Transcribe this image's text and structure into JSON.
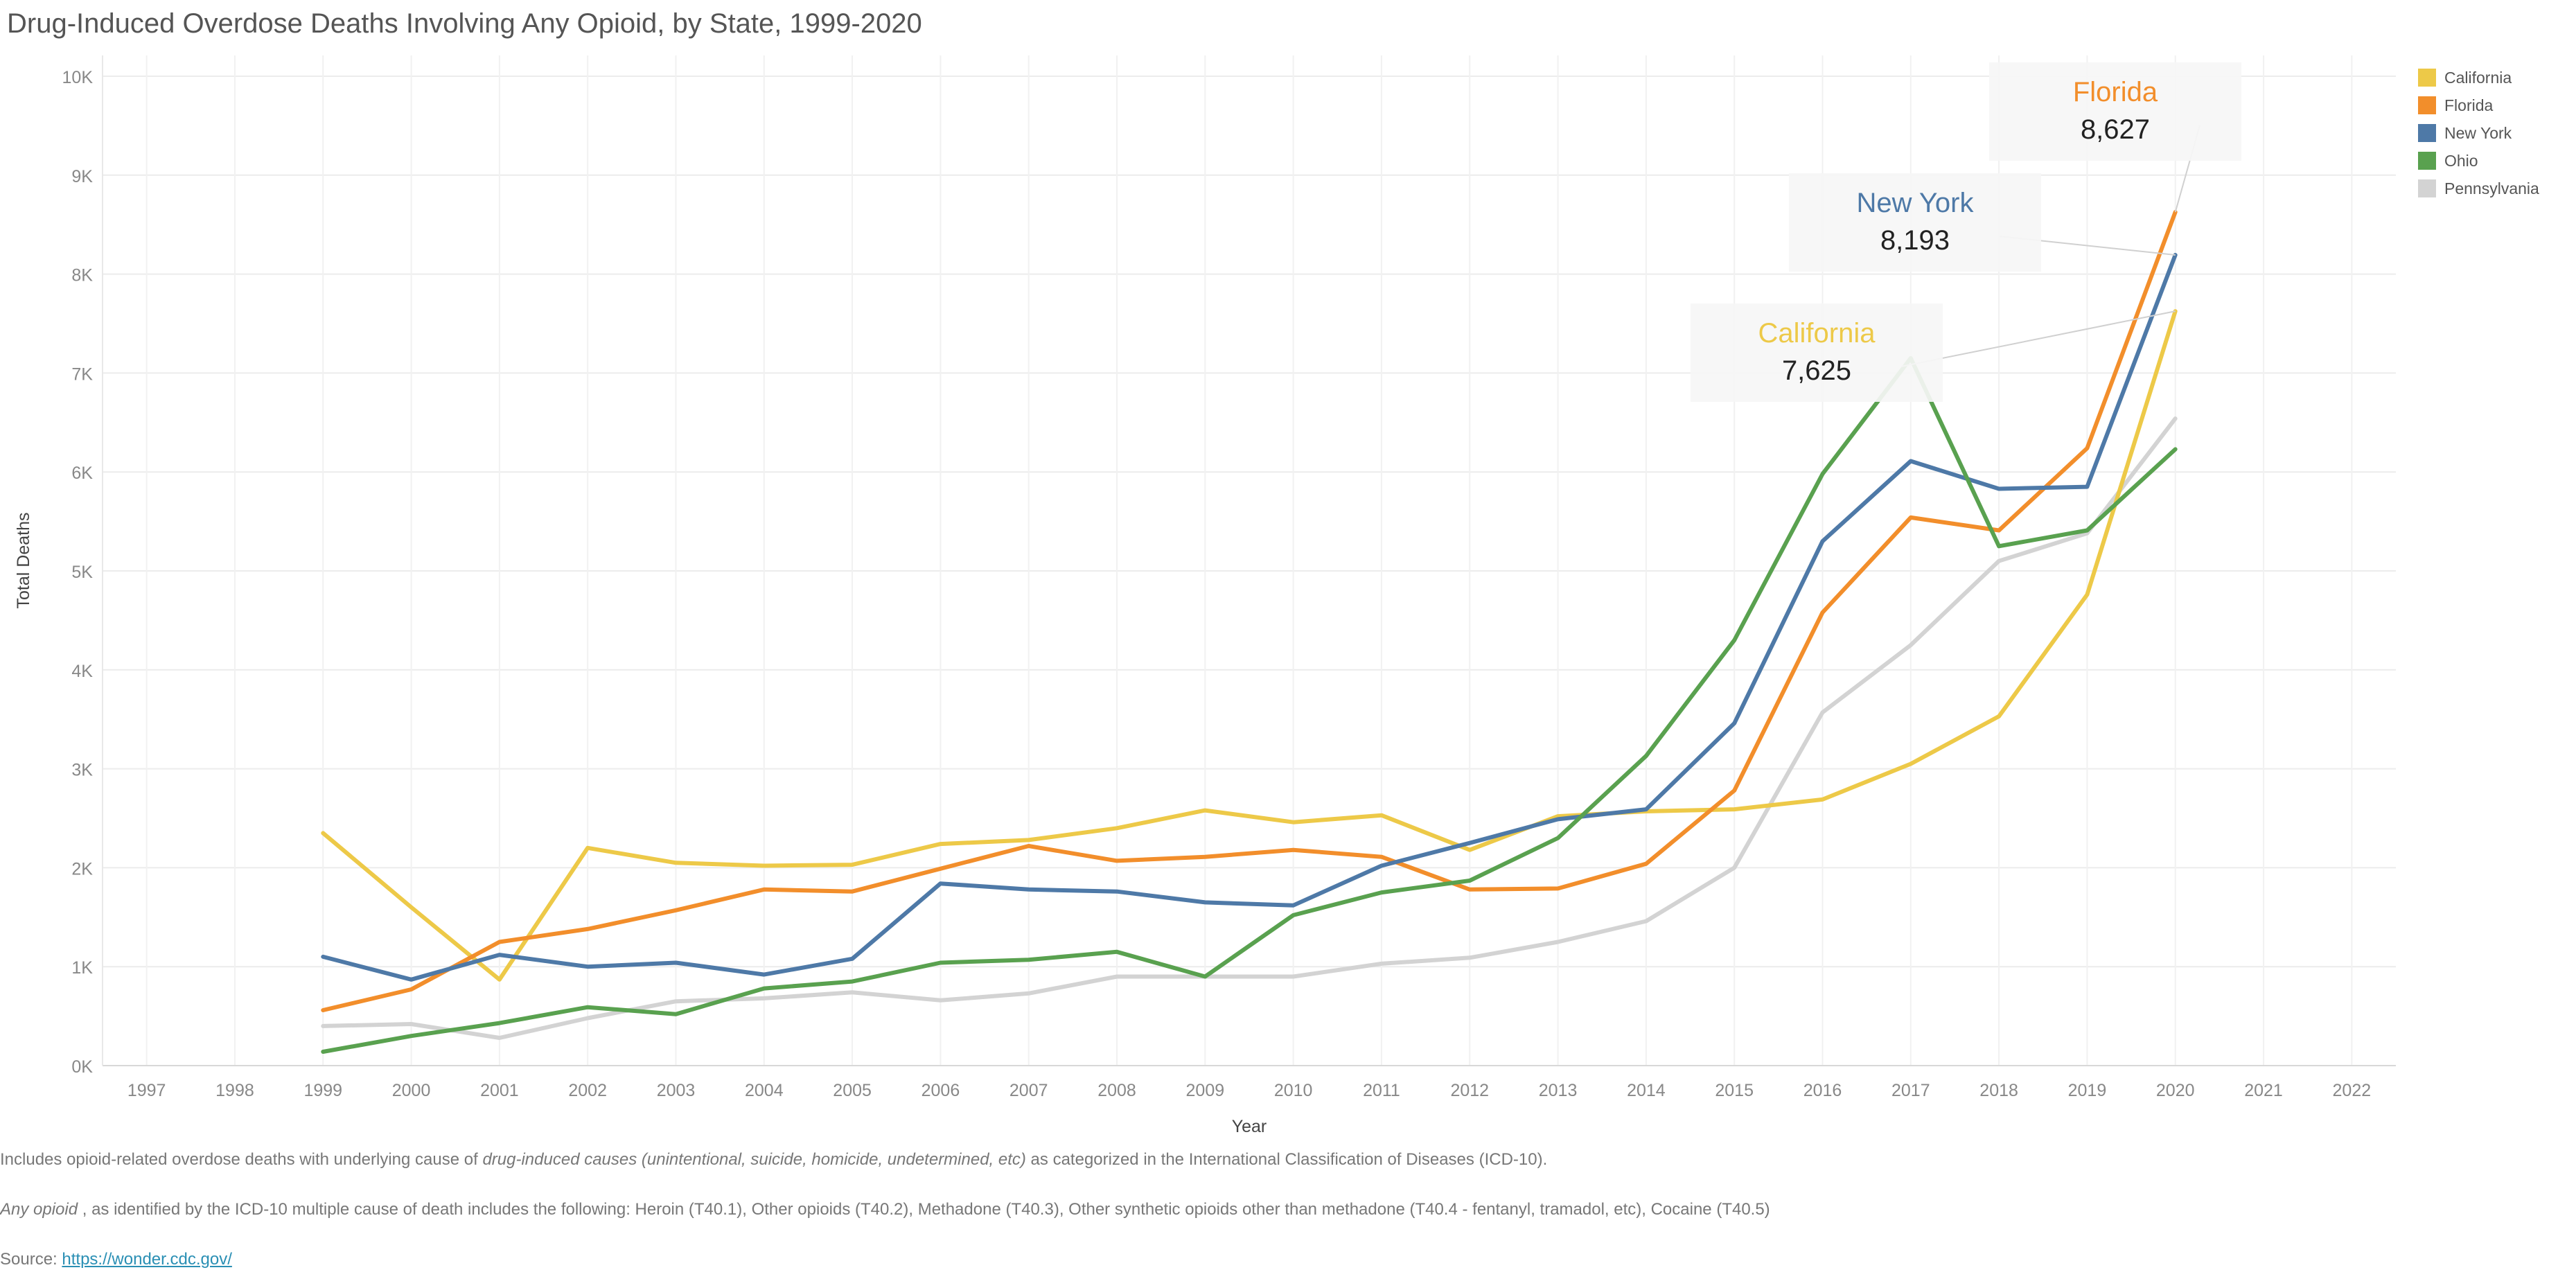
{
  "title": "Drug-Induced Overdose Deaths Involving Any Opioid, by State, 1999-2020",
  "footnotes": {
    "line1_prefix": "Includes opioid-related overdose deaths with underlying cause of ",
    "line1_italic": "drug-induced causes  (unintentional, suicide, homicide, undetermined, etc)",
    "line1_suffix": "  as categorized in the International Classification of Diseases (ICD-10).",
    "line2_italic": "Any opioid",
    "line2_suffix": " , as identified by the ICD-10 multiple cause of death includes the following: Heroin (T40.1), Other opioids (T40.2), Methadone (T40.3), Other synthetic opioids other than methadone (T40.4 - fentanyl, tramadol, etc), Cocaine (T40.5)",
    "source_label": "Source: ",
    "source_link": "https://wonder.cdc.gov/"
  },
  "chart_data": {
    "type": "line",
    "xlabel": "Year",
    "ylabel": "Total Deaths",
    "xlim": [
      1997,
      2022
    ],
    "ylim": [
      0,
      10000
    ],
    "x_ticks": [
      "1997",
      "1998",
      "1999",
      "2000",
      "2001",
      "2002",
      "2003",
      "2004",
      "2005",
      "2006",
      "2007",
      "2008",
      "2009",
      "2010",
      "2011",
      "2012",
      "2013",
      "2014",
      "2015",
      "2016",
      "2017",
      "2018",
      "2019",
      "2020",
      "2021",
      "2022"
    ],
    "y_ticks": [
      "0K",
      "1K",
      "2K",
      "3K",
      "4K",
      "5K",
      "6K",
      "7K",
      "8K",
      "9K",
      "10K"
    ],
    "grid": true,
    "legend_position": "right",
    "x": [
      1999,
      2000,
      2001,
      2002,
      2003,
      2004,
      2005,
      2006,
      2007,
      2008,
      2009,
      2010,
      2011,
      2012,
      2013,
      2014,
      2015,
      2016,
      2017,
      2018,
      2019,
      2020
    ],
    "series": [
      {
        "name": "Pennsylvania",
        "color": "#d3d3d3",
        "values": [
          400,
          420,
          280,
          480,
          650,
          680,
          740,
          660,
          730,
          900,
          900,
          900,
          1030,
          1090,
          1250,
          1460,
          2000,
          3570,
          4250,
          5100,
          5380,
          6540
        ]
      },
      {
        "name": "California",
        "color": "#edc948",
        "values": [
          2350,
          1600,
          870,
          2200,
          2050,
          2020,
          2030,
          2240,
          2280,
          2400,
          2580,
          2460,
          2530,
          2180,
          2520,
          2570,
          2590,
          2690,
          3050,
          3530,
          4760,
          7625
        ]
      },
      {
        "name": "Florida",
        "color": "#f28e2b",
        "values": [
          560,
          770,
          1250,
          1380,
          1570,
          1780,
          1760,
          1990,
          2220,
          2070,
          2110,
          2180,
          2110,
          1780,
          1790,
          2040,
          2780,
          4580,
          5540,
          5410,
          6240,
          8627
        ]
      },
      {
        "name": "New York",
        "color": "#4e79a7",
        "values": [
          1100,
          870,
          1120,
          1000,
          1040,
          920,
          1080,
          1840,
          1780,
          1760,
          1650,
          1620,
          2020,
          2250,
          2490,
          2590,
          3460,
          5300,
          6110,
          5830,
          5850,
          8193
        ]
      },
      {
        "name": "Ohio",
        "color": "#59a14f",
        "values": [
          140,
          300,
          430,
          590,
          520,
          780,
          850,
          1040,
          1070,
          1150,
          900,
          1520,
          1750,
          1870,
          2300,
          3130,
          4300,
          5980,
          7150,
          5250,
          5410,
          6230
        ]
      }
    ],
    "legend": [
      {
        "name": "California",
        "color": "#edc948"
      },
      {
        "name": "Florida",
        "color": "#f28e2b"
      },
      {
        "name": "New York",
        "color": "#4e79a7"
      },
      {
        "name": "Ohio",
        "color": "#59a14f"
      },
      {
        "name": "Pennsylvania",
        "color": "#d3d3d3"
      }
    ],
    "annotations": [
      {
        "series": "Florida",
        "label": "Florida",
        "value": "8,627",
        "color": "#f28e2b"
      },
      {
        "series": "New York",
        "label": "New York",
        "value": "8,193",
        "color": "#4e79a7"
      },
      {
        "series": "California",
        "label": "California",
        "value": "7,625",
        "color": "#edc948"
      }
    ]
  }
}
